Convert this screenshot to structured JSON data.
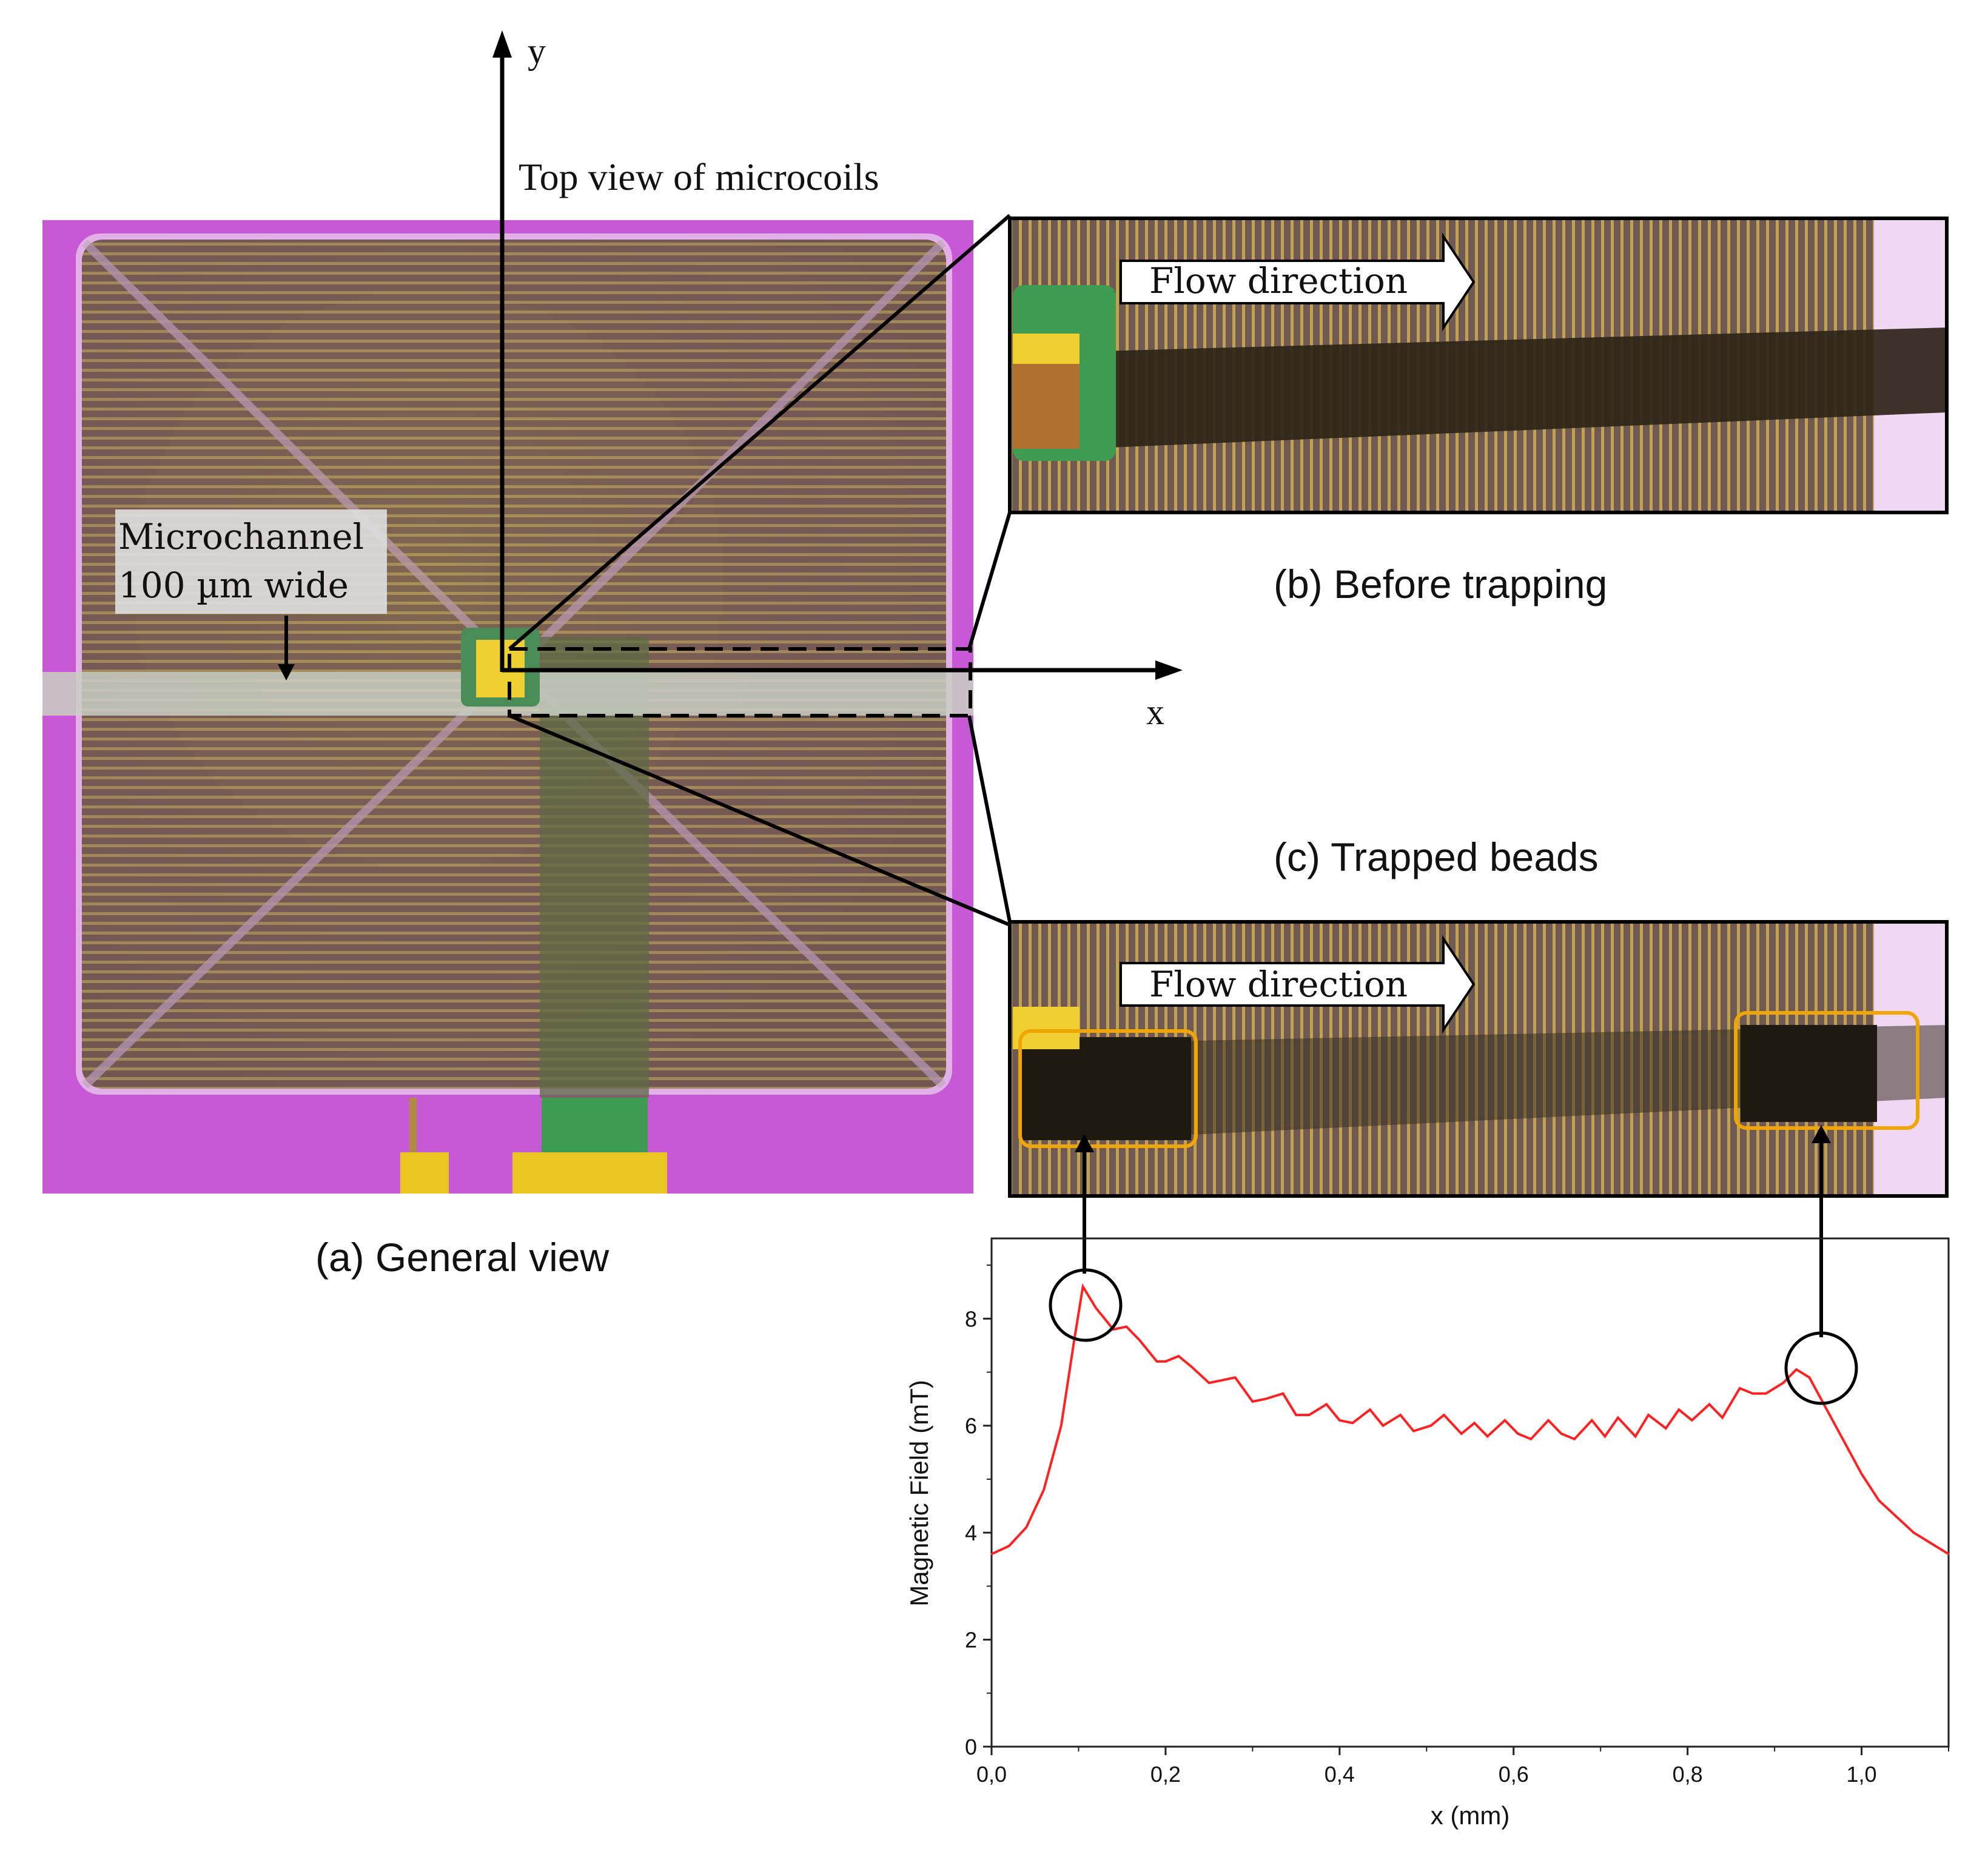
{
  "panel_a": {
    "title": "Top view of microcoils",
    "microchannel_label_line1": "Microchannel",
    "microchannel_label_line2": "100 µm wide",
    "axis_x": "x",
    "axis_y": "y",
    "caption": "(a) General view"
  },
  "panel_b": {
    "flow_label": "Flow direction",
    "caption": "(b) Before trapping"
  },
  "panel_c": {
    "flow_label": "Flow direction",
    "caption": "(c) Trapped beads"
  },
  "colors": {
    "chip_background": "#cc55dd",
    "coil_copper": "#8a6a4a",
    "trace_line": "#ff2222",
    "highlight_box": "#f0a500"
  },
  "chart_data": {
    "type": "line",
    "xlabel": "x (mm)",
    "ylabel": "Magnetic Field (mT)",
    "xlim": [
      0,
      1.1
    ],
    "ylim": [
      0,
      9.5
    ],
    "xticks": [
      "0,0",
      "0,2",
      "0,4",
      "0,6",
      "0,8",
      "1,0"
    ],
    "xtick_values": [
      0,
      0.2,
      0.4,
      0.6,
      0.8,
      1.0
    ],
    "yticks": [
      "0",
      "2",
      "4",
      "6",
      "8"
    ],
    "ytick_values": [
      0,
      2,
      4,
      6,
      8
    ],
    "series": [
      {
        "x": [
          0.0,
          0.02,
          0.04,
          0.06,
          0.08,
          0.095,
          0.105,
          0.12,
          0.14,
          0.155,
          0.17,
          0.19,
          0.2,
          0.215,
          0.23,
          0.25,
          0.265,
          0.28,
          0.3,
          0.315,
          0.335,
          0.35,
          0.365,
          0.385,
          0.4,
          0.415,
          0.435,
          0.45,
          0.47,
          0.485,
          0.505,
          0.52,
          0.54,
          0.555,
          0.57,
          0.59,
          0.605,
          0.62,
          0.64,
          0.655,
          0.67,
          0.69,
          0.705,
          0.72,
          0.74,
          0.755,
          0.775,
          0.79,
          0.805,
          0.825,
          0.84,
          0.86,
          0.875,
          0.89,
          0.91,
          0.925,
          0.94,
          0.96,
          0.98,
          1.0,
          1.02,
          1.04,
          1.06,
          1.08,
          1.1
        ],
        "y": [
          3.6,
          3.75,
          4.1,
          4.8,
          6.0,
          7.6,
          8.6,
          8.2,
          7.8,
          7.85,
          7.6,
          7.2,
          7.2,
          7.3,
          7.1,
          6.8,
          6.85,
          6.9,
          6.45,
          6.5,
          6.6,
          6.2,
          6.2,
          6.4,
          6.1,
          6.05,
          6.3,
          6.0,
          6.2,
          5.9,
          6.0,
          6.2,
          5.85,
          6.05,
          5.8,
          6.1,
          5.85,
          5.75,
          6.1,
          5.85,
          5.75,
          6.1,
          5.8,
          6.15,
          5.8,
          6.2,
          5.95,
          6.3,
          6.1,
          6.4,
          6.15,
          6.7,
          6.6,
          6.6,
          6.8,
          7.05,
          6.9,
          6.3,
          5.7,
          5.1,
          4.6,
          4.3,
          4.0,
          3.8,
          3.6
        ]
      }
    ]
  }
}
